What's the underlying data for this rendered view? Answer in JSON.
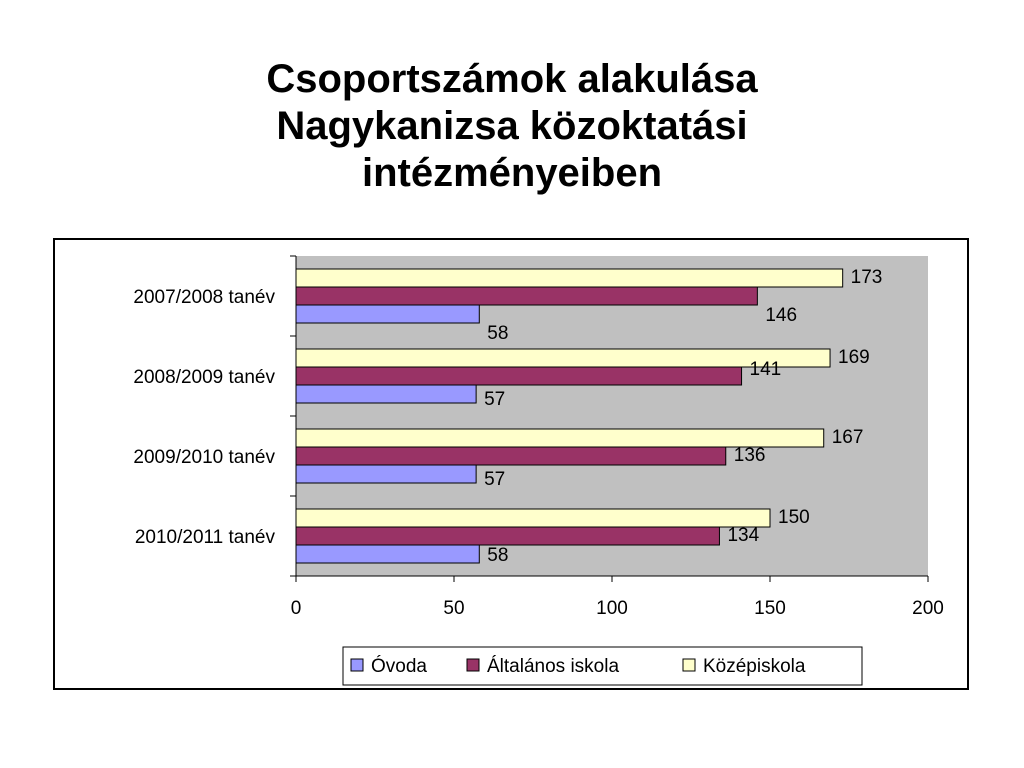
{
  "title_lines": [
    "Csoportszámok alakulása",
    "Nagykanizsa közoktatási",
    "intézményeiben"
  ],
  "chart_data": {
    "type": "bar",
    "orientation": "horizontal",
    "title": "Csoportszámok alakulása Nagykanizsa közoktatási intézményeiben",
    "categories": [
      "2007/2008 tanév",
      "2008/2009 tanév",
      "2009/2010 tanév",
      "2010/2011 tanév"
    ],
    "series": [
      {
        "name": "Óvoda",
        "values": [
          58,
          57,
          57,
          58
        ],
        "color": "#9999ff"
      },
      {
        "name": "Általános iskola",
        "values": [
          146,
          141,
          136,
          134
        ],
        "color": "#993366"
      },
      {
        "name": "Középiskola",
        "values": [
          173,
          169,
          167,
          150
        ],
        "color": "#ffffcc"
      }
    ],
    "xlim": [
      0,
      200
    ],
    "xticks": [
      "0",
      "50",
      "100",
      "150",
      "200"
    ],
    "plot_background": "#c0c0c0",
    "grid": false,
    "legend_position": "bottom"
  }
}
